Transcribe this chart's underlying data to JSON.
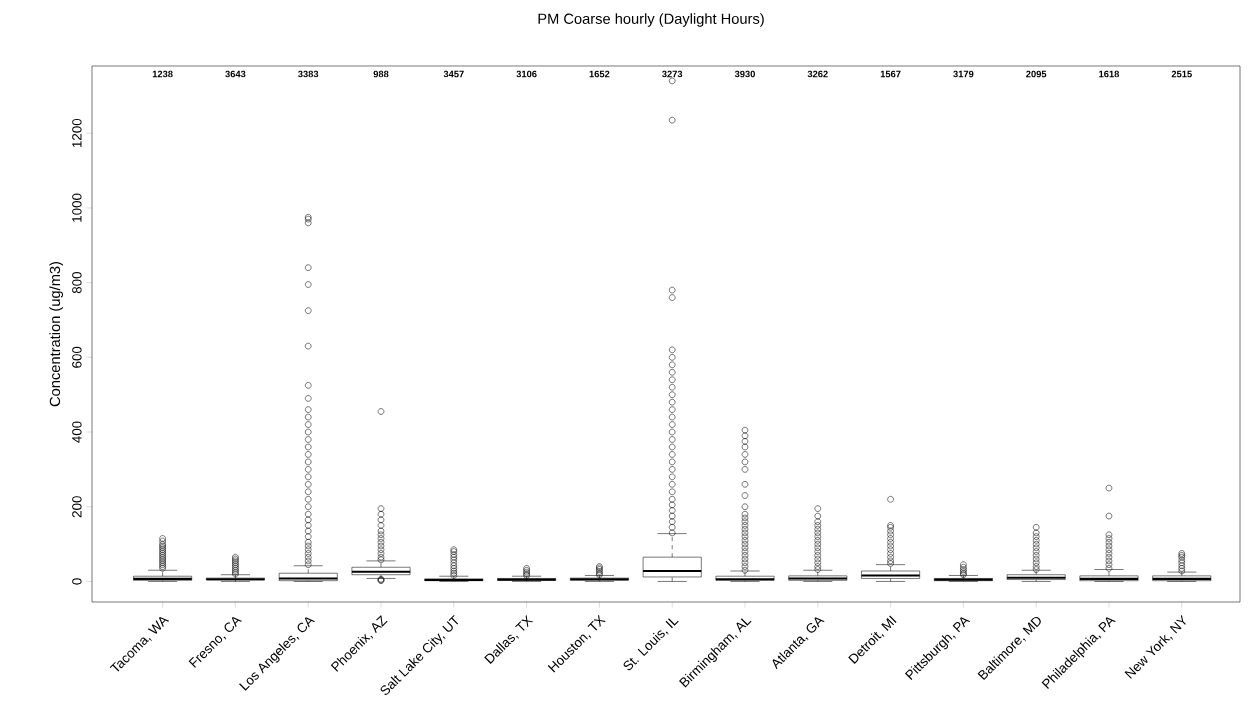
{
  "chart_data": {
    "type": "box",
    "title": "PM Coarse hourly (Daylight Hours)",
    "ylabel": "Concentration (ug/m3)",
    "categories": [
      "Tacoma, WA",
      "Fresno, CA",
      "Los Angeles, CA",
      "Phoenix, AZ",
      "Salt Lake City, UT",
      "Dallas, TX",
      "Houston, TX",
      "St. Louis, IL",
      "Birmingham, AL",
      "Atlanta, GA",
      "Detroit, MI",
      "Pittsburgh, PA",
      "Baltimore, MD",
      "Philadelphia, PA",
      "New York, NY"
    ],
    "color": "#000000",
    "marker": "circle",
    "ylim": [
      -55,
      1380
    ],
    "yticks": [
      0,
      200,
      400,
      600,
      800,
      1000,
      1200
    ],
    "boxes": [
      {
        "low": 0,
        "q1": 3,
        "median": 7,
        "q3": 14,
        "high": 30,
        "outliers": [
          35,
          40,
          45,
          50,
          55,
          60,
          65,
          70,
          75,
          80,
          85,
          90,
          95,
          100,
          108,
          115
        ]
      },
      {
        "low": 0,
        "q1": 4,
        "median": 6,
        "q3": 9,
        "high": 18,
        "outliers": [
          20,
          25,
          30,
          35,
          40,
          45,
          50,
          55,
          60,
          65
        ]
      },
      {
        "low": 0,
        "q1": 2,
        "median": 8,
        "q3": 22,
        "high": 42,
        "outliers": [
          45,
          55,
          65,
          75,
          85,
          95,
          105,
          120,
          135,
          150,
          165,
          180,
          200,
          220,
          240,
          260,
          280,
          300,
          320,
          340,
          360,
          380,
          400,
          420,
          440,
          460,
          490,
          525,
          630,
          725,
          795,
          840,
          960,
          970,
          975
        ]
      },
      {
        "low": 8,
        "q1": 18,
        "median": 26,
        "q3": 38,
        "high": 55,
        "outliers": [
          2,
          4,
          6,
          58,
          65,
          75,
          85,
          95,
          105,
          115,
          125,
          135,
          150,
          165,
          180,
          195,
          455
        ]
      },
      {
        "low": 0,
        "q1": 2,
        "median": 4,
        "q3": 7,
        "high": 14,
        "outliers": [
          16,
          22,
          28,
          35,
          42,
          50,
          58,
          65,
          72,
          80,
          85
        ]
      },
      {
        "low": 0,
        "q1": 3,
        "median": 5,
        "q3": 8,
        "high": 14,
        "outliers": [
          16,
          20,
          25,
          30,
          35
        ]
      },
      {
        "low": 0,
        "q1": 3,
        "median": 6,
        "q3": 9,
        "high": 16,
        "outliers": [
          18,
          22,
          27,
          32,
          36,
          40
        ]
      },
      {
        "low": 0,
        "q1": 12,
        "median": 28,
        "q3": 65,
        "high": 128,
        "outliers": [
          130,
          145,
          160,
          175,
          190,
          205,
          220,
          240,
          260,
          280,
          300,
          320,
          340,
          360,
          380,
          400,
          420,
          440,
          460,
          480,
          500,
          520,
          540,
          560,
          580,
          600,
          620,
          760,
          780,
          1235,
          1340
        ]
      },
      {
        "low": 0,
        "q1": 3,
        "median": 6,
        "q3": 14,
        "high": 28,
        "outliers": [
          30,
          40,
          50,
          60,
          70,
          80,
          90,
          100,
          110,
          120,
          130,
          140,
          150,
          160,
          170,
          180,
          200,
          230,
          260,
          300,
          320,
          340,
          360,
          375,
          390,
          405
        ]
      },
      {
        "low": 0,
        "q1": 3,
        "median": 8,
        "q3": 15,
        "high": 30,
        "outliers": [
          32,
          40,
          50,
          60,
          70,
          80,
          90,
          100,
          110,
          120,
          130,
          140,
          150,
          160,
          175,
          195
        ]
      },
      {
        "low": 0,
        "q1": 8,
        "median": 16,
        "q3": 28,
        "high": 45,
        "outliers": [
          48,
          55,
          65,
          75,
          85,
          95,
          105,
          115,
          125,
          135,
          145,
          150,
          220
        ]
      },
      {
        "low": 0,
        "q1": 2,
        "median": 5,
        "q3": 8,
        "high": 16,
        "outliers": [
          18,
          22,
          27,
          32,
          38,
          45
        ]
      },
      {
        "low": 0,
        "q1": 5,
        "median": 10,
        "q3": 18,
        "high": 30,
        "outliers": [
          32,
          40,
          50,
          60,
          70,
          80,
          90,
          100,
          110,
          120,
          130,
          145
        ]
      },
      {
        "low": 0,
        "q1": 2,
        "median": 7,
        "q3": 15,
        "high": 32,
        "outliers": [
          35,
          45,
          55,
          65,
          75,
          85,
          95,
          105,
          115,
          125,
          175,
          250
        ]
      },
      {
        "low": 0,
        "q1": 2,
        "median": 7,
        "q3": 15,
        "high": 25,
        "outliers": [
          28,
          35,
          42,
          50,
          57,
          65,
          70,
          75
        ]
      }
    ],
    "annotations": [
      "1238",
      "3643",
      "3383",
      "988",
      "3457",
      "3106",
      "1652",
      "3273",
      "3930",
      "3262",
      "1567",
      "3179",
      "2095",
      "1618",
      "2515"
    ]
  }
}
